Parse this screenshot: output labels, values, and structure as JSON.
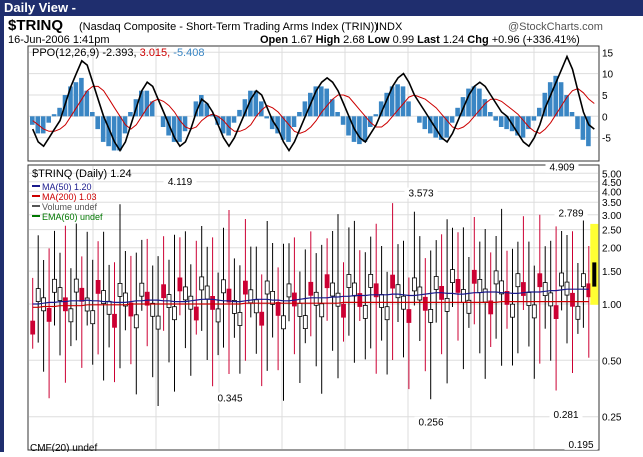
{
  "header": {
    "view_title": "Daily View -"
  },
  "chart_header": {
    "symbol": "$TRINQ",
    "description": "(Nasdaq Composite - Short-Term Trading Arms Index (TRIN))",
    "exchange": "INDX",
    "source": "@StockCharts.com",
    "date": "16-Jun-2006 1:41pm",
    "open_label": "Open",
    "open": "1.67",
    "high_label": "High",
    "high": "2.68",
    "low_label": "Low",
    "low": "0.99",
    "last_label": "Last",
    "last": "1.24",
    "chg_label": "Chg",
    "chg": "+0.96 (+336.41%)"
  },
  "ppo_panel": {
    "label": "PPO(12,26,9)",
    "v1": "-2.393,",
    "v2": "3.015,",
    "v3": "-5.408",
    "ylim": [
      -10,
      16
    ],
    "ticks": [
      "15",
      "10",
      "5",
      "0",
      "-5"
    ],
    "colors": {
      "line": "#000000",
      "signal": "#cc0000",
      "hist": "#3a86c4"
    }
  },
  "price_panel": {
    "label": "$TRINQ (Daily) 1.24",
    "ylim": [
      0.17,
      5.4
    ],
    "ticks": [
      "5.00",
      "4.50",
      "4.00",
      "3.50",
      "3.00",
      "2.50",
      "2.00",
      "1.50",
      "1.00",
      "0.50",
      "0.25"
    ],
    "legend": [
      {
        "text": "MA(50) 1.20",
        "color": "#1a1a8c"
      },
      {
        "text": "MA(200) 1.03",
        "color": "#cc0000"
      },
      {
        "text": "Volume undef",
        "color": "#555555"
      },
      {
        "text": "EMA(60) undef",
        "color": "#007700"
      }
    ],
    "annotations": [
      "4.119",
      "3.573",
      "4.909",
      "2.789",
      "0.345",
      "0.256",
      "0.281",
      "0.195"
    ],
    "colors": {
      "up": "#000000",
      "down": "#cc0033",
      "highlight": "#ffff33",
      "ma50": "#1a1a8c",
      "ma200": "#cc0000"
    }
  },
  "bottom_label": "CMF(20) undef",
  "chart_data": [
    {
      "type": "bar",
      "title": "PPO(12,26,9)",
      "ylim": [
        -10,
        16
      ],
      "series": [
        {
          "name": "PPO(12,26,9)",
          "values": [
            -3,
            -6,
            -7,
            -5,
            -3,
            -1,
            3,
            7,
            10,
            13,
            12,
            8,
            4,
            0,
            -3,
            -6,
            -8,
            -6,
            -2,
            2,
            6,
            8,
            7,
            4,
            1,
            -2,
            -5,
            -7,
            -6,
            -3,
            1,
            4,
            3,
            1,
            -2,
            -5,
            -7,
            -5,
            -2,
            1,
            4,
            6,
            5,
            2,
            -1,
            -3,
            -6,
            -8,
            -6,
            -3,
            0,
            3,
            6,
            8,
            9,
            8,
            6,
            3,
            0,
            -3,
            -5,
            -6,
            -4,
            -2,
            1,
            4,
            7,
            9,
            10,
            8,
            5,
            3,
            1,
            -1,
            -3,
            -5,
            -6,
            -4,
            -1,
            2,
            5,
            7,
            8,
            7,
            5,
            3,
            1,
            0,
            -2,
            -4,
            -6,
            -7,
            -5,
            -2,
            2,
            5,
            8,
            11,
            14,
            11,
            6,
            1,
            -2,
            -3
          ]
        },
        {
          "name": "",
          "values": [
            -1,
            -2,
            -3,
            -3.5,
            -3.5,
            -3,
            -2,
            0,
            2,
            4,
            6,
            7,
            7,
            6,
            4,
            2,
            0,
            -2,
            -3,
            -2,
            0,
            2,
            3.5,
            4,
            3.5,
            2.5,
            1,
            -1,
            -2.5,
            -3,
            -2.5,
            -1,
            0,
            0.5,
            0,
            -1,
            -2.5,
            -3.5,
            -3.5,
            -3,
            -2,
            0,
            1.5,
            2.5,
            2,
            1,
            -0.5,
            -2,
            -3.5,
            -4,
            -3.5,
            -2.5,
            -1,
            1,
            2.5,
            4,
            5,
            5,
            4.5,
            3,
            1.5,
            0,
            -1.5,
            -2.5,
            -2.5,
            -1.5,
            0,
            1.5,
            3,
            4.5,
            5,
            4.5,
            4,
            3,
            2,
            0.5,
            -1,
            -2.5,
            -3,
            -2.5,
            -1.5,
            0,
            1.5,
            3,
            4,
            4,
            3.5,
            2.5,
            1.5,
            0.5,
            -1,
            -2.5,
            -3.5,
            -4,
            -3,
            -1.5,
            0.5,
            2.5,
            4.5,
            6,
            6.5,
            5.5,
            4,
            3
          ]
        },
        {
          "name": "",
          "values": [
            -2,
            -4,
            -4,
            -1.5,
            0.5,
            2,
            5,
            7,
            8,
            9,
            6,
            1,
            -3,
            -6,
            -7,
            -8,
            -8,
            -4,
            1,
            4,
            6,
            6,
            3.5,
            0,
            -2.5,
            -4.5,
            -6,
            -6,
            -3.5,
            0,
            3.5,
            5,
            3,
            0.5,
            -2,
            -4,
            -4.5,
            -1.5,
            1.5,
            4,
            6,
            6,
            3.5,
            -0.5,
            -3,
            -4,
            -5.5,
            -6,
            -2.5,
            1,
            3.5,
            5.5,
            7,
            7,
            6.5,
            4,
            1,
            -2,
            -4.5,
            -6,
            -6.5,
            -6,
            -2.5,
            0.5,
            3.5,
            5.5,
            7,
            7.5,
            7,
            3.5,
            0,
            -1.5,
            -3,
            -4,
            -5,
            -5.5,
            -5,
            -1.5,
            2,
            4.5,
            6.5,
            7,
            6.5,
            4,
            1,
            -1,
            -2.5,
            -3,
            -3.5,
            -4.5,
            -5,
            -3,
            -1,
            2,
            5.5,
            8,
            9.5,
            8,
            5,
            1,
            -3,
            -5.5,
            -7
          ]
        }
      ]
    },
    {
      "type": "line",
      "title": "$TRINQ (Daily) 1.24",
      "ylim": [
        0.17,
        5.4
      ],
      "series": [
        {
          "name": "MA(50) 1.20",
          "values": [
            1.0,
            1.0,
            1.01,
            1.02,
            1.02,
            1.03,
            1.03,
            1.04,
            1.04,
            1.04,
            1.05,
            1.04,
            1.04,
            1.03,
            1.03,
            1.02,
            1.02,
            1.02,
            1.03,
            1.04,
            1.04,
            1.05,
            1.05,
            1.05,
            1.04,
            1.04,
            1.03,
            1.03,
            1.03,
            1.04,
            1.05,
            1.06,
            1.06,
            1.06,
            1.05,
            1.04,
            1.04,
            1.03,
            1.03,
            1.04,
            1.05,
            1.06,
            1.06,
            1.06,
            1.05,
            1.05,
            1.04,
            1.04,
            1.05,
            1.06,
            1.07,
            1.08,
            1.08,
            1.08,
            1.08,
            1.09,
            1.09,
            1.1,
            1.1,
            1.11,
            1.11,
            1.11,
            1.12,
            1.12,
            1.12,
            1.12,
            1.13,
            1.13,
            1.12,
            1.11,
            1.11,
            1.12,
            1.13,
            1.14,
            1.15,
            1.15,
            1.14,
            1.14,
            1.13,
            1.13,
            1.14,
            1.15,
            1.15,
            1.16,
            1.16,
            1.16,
            1.15,
            1.15,
            1.14,
            1.14,
            1.15,
            1.16,
            1.16,
            1.16,
            1.17,
            1.18,
            1.18,
            1.19,
            1.2,
            1.2,
            1.2,
            1.2,
            1.2
          ]
        },
        {
          "name": "MA(200) 1.03",
          "values": [
            0.96,
            0.96,
            0.97,
            0.97,
            0.97,
            0.98,
            0.98,
            0.98,
            0.98,
            0.98,
            0.99,
            0.99,
            0.99,
            0.99,
            0.99,
            0.99,
            0.99,
            0.99,
            1.0,
            1.0,
            1.0,
            1.0,
            1.0,
            1.0,
            1.0,
            1.0,
            1.0,
            1.0,
            1.0,
            1.0,
            1.0,
            1.0,
            1.0,
            1.0,
            1.0,
            1.0,
            1.0,
            1.0,
            1.0,
            1.01,
            1.01,
            1.01,
            1.01,
            1.01,
            1.01,
            1.01,
            1.01,
            1.01,
            1.01,
            1.01,
            1.01,
            1.01,
            1.01,
            1.01,
            1.01,
            1.01,
            1.01,
            1.02,
            1.02,
            1.02,
            1.02,
            1.02,
            1.02,
            1.02,
            1.02,
            1.02,
            1.02,
            1.02,
            1.02,
            1.02,
            1.02,
            1.02,
            1.02,
            1.02,
            1.02,
            1.02,
            1.02,
            1.02,
            1.02,
            1.02,
            1.02,
            1.02,
            1.02,
            1.02,
            1.02,
            1.02,
            1.03,
            1.03,
            1.03,
            1.03,
            1.03,
            1.03,
            1.03,
            1.03,
            1.03,
            1.03,
            1.03,
            1.03,
            1.03,
            1.03,
            1.03,
            1.03,
            1.03
          ]
        }
      ]
    }
  ]
}
